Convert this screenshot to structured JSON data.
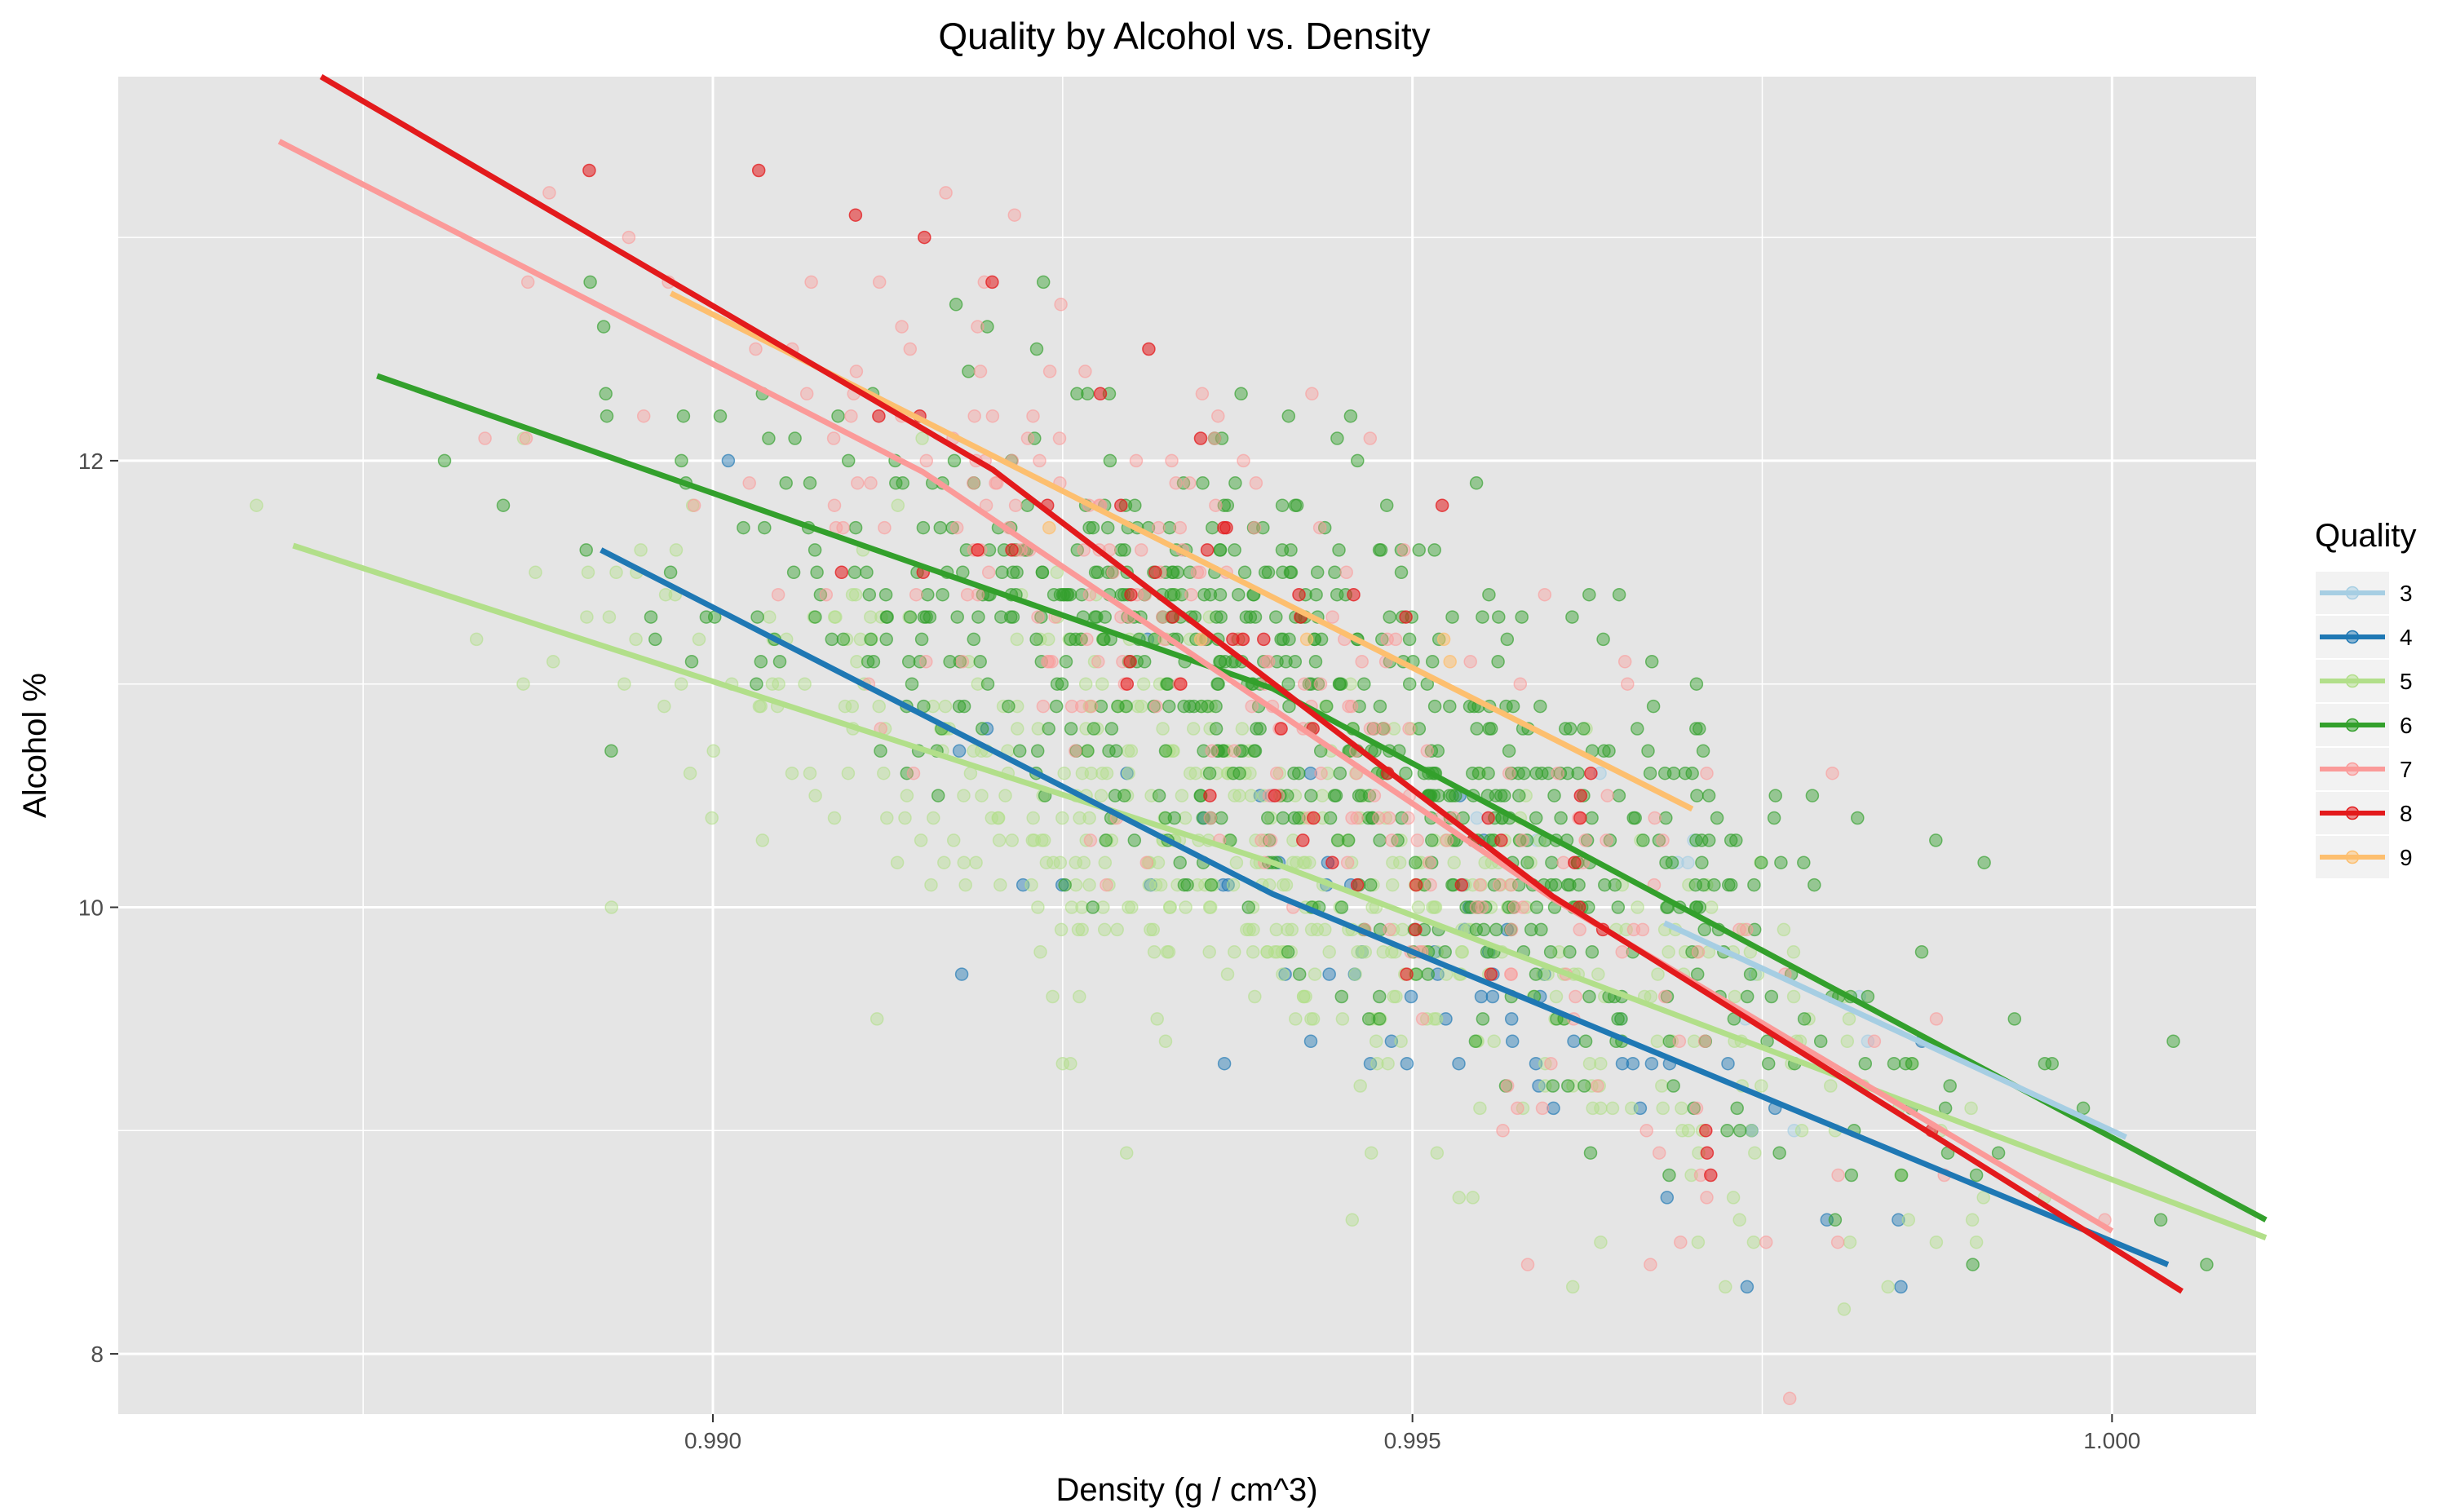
{
  "chart_data": {
    "type": "scatter",
    "title": "Quality by Alcohol vs. Density",
    "xlabel": "Density (g / cm^3)",
    "ylabel": "Alcohol %",
    "xlim": [
      0.98575,
      1.00103
    ],
    "ylim": [
      7.73,
      13.72
    ],
    "x_ticks": [
      {
        "value": 0.99,
        "label": "0.990"
      },
      {
        "value": 0.995,
        "label": "0.995"
      },
      {
        "value": 1.0,
        "label": "1.000"
      }
    ],
    "y_ticks": [
      {
        "value": 8,
        "label": "8"
      },
      {
        "value": 10,
        "label": "10"
      },
      {
        "value": 12,
        "label": "12"
      }
    ],
    "x_minor": [
      0.9875,
      0.9925,
      0.9975
    ],
    "y_minor": [
      9,
      11,
      13
    ],
    "grid": true,
    "panel_background": "#e5e5e5",
    "grid_color": "#ffffff",
    "legend": {
      "title": "Quality",
      "placement": "right",
      "entries": [
        {
          "label": "3",
          "color": "#a6cee3"
        },
        {
          "label": "4",
          "color": "#1f78b4"
        },
        {
          "label": "5",
          "color": "#b2df8a"
        },
        {
          "label": "6",
          "color": "#33a02c"
        },
        {
          "label": "7",
          "color": "#fb9a99"
        },
        {
          "label": "8",
          "color": "#e31a1c"
        },
        {
          "label": "9",
          "color": "#fdbf6f"
        }
      ]
    },
    "trend_lines": [
      {
        "quality": "3",
        "color": "#a6cee3",
        "points": [
          [
            0.9968,
            9.93
          ],
          [
            1.0001,
            8.97
          ]
        ]
      },
      {
        "quality": "4",
        "color": "#1f78b4",
        "points": [
          [
            0.9892,
            11.6
          ],
          [
            0.994,
            10.06
          ],
          [
            1.0004,
            8.4
          ]
        ]
      },
      {
        "quality": "5",
        "color": "#b2df8a",
        "points": [
          [
            0.987,
            11.62
          ],
          [
            0.994,
            10.2
          ],
          [
            1.0011,
            8.52
          ]
        ]
      },
      {
        "quality": "6",
        "color": "#33a02c",
        "points": [
          [
            0.9876,
            12.38
          ],
          [
            0.994,
            10.98
          ],
          [
            1.0011,
            8.6
          ]
        ]
      },
      {
        "quality": "7",
        "color": "#fb9a99",
        "points": [
          [
            0.9869,
            13.43
          ],
          [
            0.9915,
            11.95
          ],
          [
            0.996,
            10.04
          ],
          [
            1.0,
            8.55
          ]
        ]
      },
      {
        "quality": "8",
        "color": "#e31a1c",
        "points": [
          [
            0.9872,
            13.72
          ],
          [
            0.992,
            11.96
          ],
          [
            0.996,
            10.05
          ],
          [
            1.0005,
            8.28
          ]
        ]
      },
      {
        "quality": "9",
        "color": "#fdbf6f",
        "points": [
          [
            0.9897,
            12.75
          ],
          [
            0.997,
            10.44
          ]
        ]
      }
    ]
  }
}
